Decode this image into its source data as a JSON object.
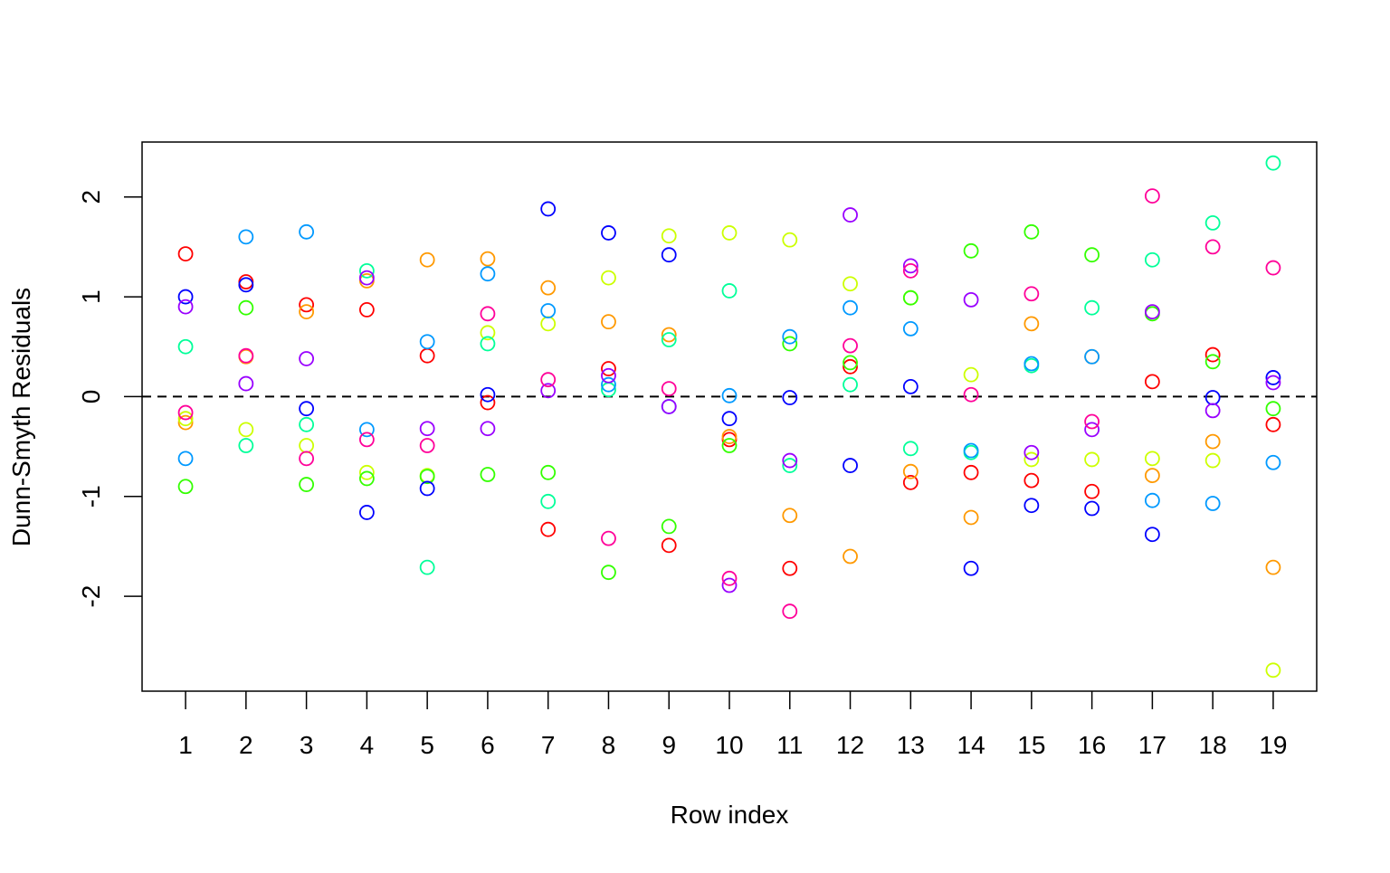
{
  "chart_data": {
    "type": "scatter",
    "title": "",
    "xlabel": "Row index",
    "ylabel": "Dunn-Smyth Residuals",
    "xlim": [
      0.28,
      19.72
    ],
    "ylim": [
      -2.95,
      2.55
    ],
    "x_ticks": [
      1,
      2,
      3,
      4,
      5,
      6,
      7,
      8,
      9,
      10,
      11,
      12,
      13,
      14,
      15,
      16,
      17,
      18,
      19
    ],
    "y_ticks": [
      -2,
      -1,
      0,
      1,
      2
    ],
    "reference_line": {
      "y": 0,
      "style": "dashed"
    },
    "grid": false,
    "legend": "none",
    "marker": "open-circle",
    "colors": [
      "#FF0000",
      "#FF9900",
      "#CCFF00",
      "#33FF00",
      "#00FF66",
      "#00FFFF",
      "#0066FF",
      "#3300FF",
      "#CC00FF",
      "#FF0099"
    ],
    "series": [
      {
        "color": "#FF0000",
        "values": [
          1.43,
          1.15,
          0.92,
          0.87,
          0.41,
          -0.06,
          -1.33,
          0.28,
          -1.49,
          -0.43,
          -1.72,
          0.3,
          -0.86,
          -0.76,
          -0.84,
          -0.95,
          0.15,
          0.42,
          -0.28
        ]
      },
      {
        "color": "#FF9900",
        "values": [
          -0.26,
          0.4,
          0.85,
          1.16,
          1.37,
          1.38,
          1.09,
          0.75,
          0.62,
          -0.4,
          -1.19,
          -1.6,
          -0.75,
          -1.21,
          0.73,
          0.4,
          -0.79,
          -0.45,
          -1.71
        ]
      },
      {
        "color": "#CCFF00",
        "values": [
          -0.22,
          -0.33,
          -0.49,
          -0.76,
          -0.79,
          0.64,
          0.73,
          1.19,
          1.61,
          1.64,
          1.57,
          1.13,
          0.99,
          0.22,
          -0.63,
          -0.63,
          -0.62,
          -0.64,
          -2.74
        ]
      },
      {
        "color": "#33FF00",
        "values": [
          -0.9,
          0.89,
          -0.88,
          -0.82,
          -0.8,
          -0.78,
          -0.76,
          -1.76,
          -1.3,
          -0.49,
          0.53,
          0.34,
          0.99,
          1.46,
          1.65,
          1.42,
          0.83,
          0.35,
          -0.12
        ]
      },
      {
        "color": "#00FF99",
        "values": [
          0.5,
          -0.49,
          -0.28,
          1.26,
          -1.71,
          0.53,
          -1.05,
          0.07,
          0.57,
          1.06,
          -0.69,
          0.12,
          -0.52,
          -0.56,
          0.31,
          0.89,
          1.37,
          1.74,
          2.34
        ]
      },
      {
        "color": "#0099FF",
        "values": [
          -0.62,
          1.6,
          1.65,
          -0.33,
          0.55,
          1.23,
          0.86,
          0.12,
          -0.1,
          0.01,
          0.6,
          0.89,
          0.68,
          -0.54,
          0.33,
          0.4,
          -1.04,
          -1.07,
          -0.66
        ]
      },
      {
        "color": "#0000FF",
        "values": [
          1.0,
          1.12,
          -0.12,
          -1.16,
          -0.92,
          0.02,
          1.88,
          1.64,
          1.42,
          -0.22,
          -0.01,
          -0.69,
          0.1,
          -1.72,
          -1.09,
          -1.12,
          -1.38,
          -0.01,
          0.19
        ]
      },
      {
        "color": "#9900FF",
        "values": [
          0.9,
          0.13,
          0.38,
          1.19,
          -0.32,
          -0.32,
          0.06,
          0.21,
          -0.1,
          -1.89,
          -0.64,
          1.82,
          1.31,
          0.97,
          -0.56,
          -0.33,
          0.85,
          -0.14,
          0.14
        ]
      },
      {
        "color": "#FF0099",
        "values": [
          -0.16,
          0.41,
          -0.62,
          -0.43,
          -0.49,
          0.83,
          0.17,
          -1.42,
          0.08,
          -1.82,
          -2.15,
          0.51,
          1.26,
          0.02,
          1.03,
          -0.25,
          2.01,
          1.5,
          1.29
        ]
      }
    ]
  }
}
